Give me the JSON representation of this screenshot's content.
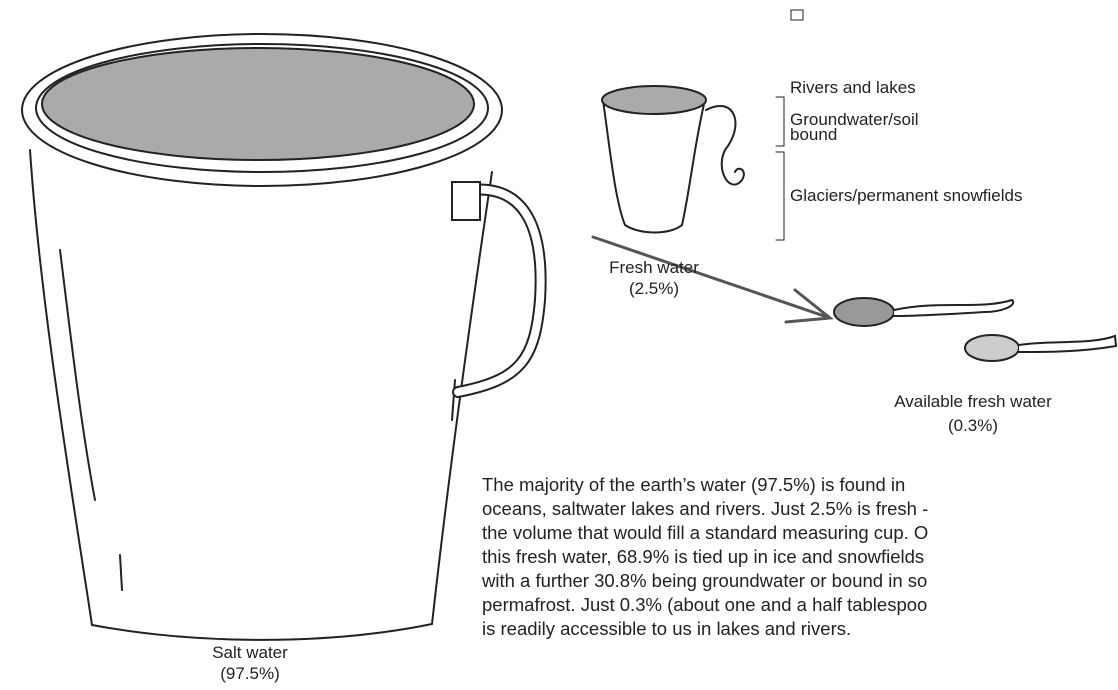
{
  "labels": {
    "rivers_lakes": "Rivers and lakes",
    "groundwater": [
      "Groundwater/soil",
      "bound"
    ],
    "glaciers": "Glaciers/permanent snowfields",
    "fresh_water": [
      "Fresh water",
      "(2.5%)"
    ],
    "available": [
      "Available fresh water",
      "(0.3%)"
    ],
    "salt_water": [
      "Salt water",
      "(97.5%)"
    ]
  },
  "paragraph": [
    "The majority of the earth’s water (97.5%) is found in",
    "oceans, saltwater lakes and rivers. Just 2.5% is fresh -",
    "the volume that would fill a standard measuring cup. O",
    "this fresh water, 68.9% is tied up in ice and snowfields",
    "with a further 30.8% being groundwater or bound in so",
    "permafrost. Just 0.3% (about one and a half tablespoo",
    "is readily accessible to us in lakes and rivers."
  ]
}
